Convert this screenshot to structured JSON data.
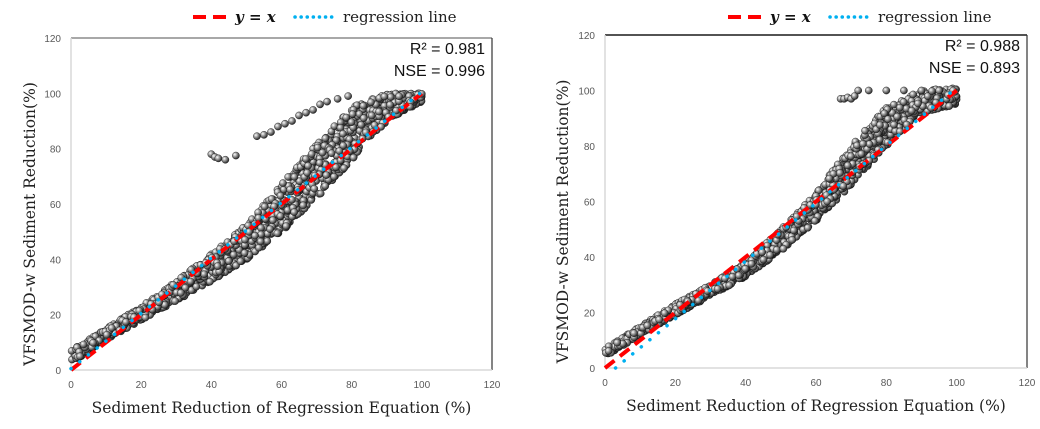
{
  "chart_data": [
    {
      "type": "scatter",
      "title": "",
      "xlabel": "Sediment Reduction of Regression Equation (%)",
      "ylabel": "VFSMOD-w Sediment Reduction(%)",
      "xlim": [
        0,
        120
      ],
      "ylim": [
        0,
        120
      ],
      "xticks": [
        "0",
        "20",
        "40",
        "60",
        "80",
        "100",
        "120"
      ],
      "yticks": [
        "0",
        "20",
        "40",
        "60",
        "80",
        "100",
        "120"
      ],
      "grid": false,
      "legend": {
        "placement": "top-right",
        "entries": [
          {
            "label": "y = x",
            "style": "dashed",
            "color": "#FF0000"
          },
          {
            "label": "regression line",
            "style": "dotted",
            "color": "#00B0F0"
          }
        ]
      },
      "annotations": [
        "R² = 0.981",
        "NSE = 0.996"
      ],
      "series": [
        {
          "name": "simulations",
          "marker_color": "#7f7f7f",
          "band": {
            "x": [
              0,
              5,
              10,
              20,
              30,
              40,
              50,
              60,
              70,
              80,
              90,
              100
            ],
            "y_low": [
              2,
              7,
              11,
              18,
              25,
              32,
              40,
              50,
              62,
              76,
              90,
              97
            ],
            "y_high": [
              7,
              11,
              15,
              23,
              32,
              42,
              53,
              67,
              82,
              95,
              100,
              100
            ]
          },
          "outliers": [
            {
              "x": 40,
              "y": 78
            },
            {
              "x": 41,
              "y": 77
            },
            {
              "x": 42,
              "y": 76.5
            },
            {
              "x": 44,
              "y": 76
            },
            {
              "x": 47,
              "y": 77.5
            },
            {
              "x": 53,
              "y": 84.5
            },
            {
              "x": 55,
              "y": 85
            },
            {
              "x": 57,
              "y": 86
            },
            {
              "x": 59,
              "y": 88
            },
            {
              "x": 61,
              "y": 89
            },
            {
              "x": 63,
              "y": 90
            },
            {
              "x": 65,
              "y": 92
            },
            {
              "x": 67,
              "y": 93
            },
            {
              "x": 69,
              "y": 94
            },
            {
              "x": 71,
              "y": 96
            },
            {
              "x": 73,
              "y": 97
            },
            {
              "x": 76,
              "y": 98
            },
            {
              "x": 79,
              "y": 99
            }
          ]
        },
        {
          "name": "y = x",
          "x": [
            0,
            100
          ],
          "y": [
            0,
            100
          ]
        },
        {
          "name": "regression line",
          "x": [
            0,
            100
          ],
          "y": [
            0.5,
            100.5
          ]
        }
      ]
    },
    {
      "type": "scatter",
      "title": "",
      "xlabel": "Sediment Reduction of Regression Equation (%)",
      "ylabel": "VFSMOD-w Sediment Reduction(%)",
      "xlim": [
        0,
        120
      ],
      "ylim": [
        0,
        120
      ],
      "xticks": [
        "0",
        "20",
        "40",
        "60",
        "80",
        "100",
        "120"
      ],
      "yticks": [
        "0",
        "20",
        "40",
        "60",
        "80",
        "100",
        "120"
      ],
      "grid": false,
      "legend": {
        "placement": "top-right",
        "entries": [
          {
            "label": "y = x",
            "style": "dashed",
            "color": "#FF0000"
          },
          {
            "label": "regression line",
            "style": "dotted",
            "color": "#00B0F0"
          }
        ]
      },
      "annotations": [
        "R² = 0.988",
        "NSE = 0.893"
      ],
      "series": [
        {
          "name": "simulations",
          "marker_color": "#7f7f7f",
          "band": {
            "x": [
              0,
              5,
              10,
              20,
              30,
              40,
              50,
              60,
              70,
              80,
              90,
              100
            ],
            "y_low": [
              4,
              8,
              12,
              19,
              26,
              33,
              42,
              53,
              66,
              80,
              92,
              95
            ],
            "y_high": [
              7,
              11,
              15,
              23,
              30,
              38,
              50,
              63,
              80,
              94,
              100,
              101
            ]
          },
          "outliers": [
            {
              "x": 67,
              "y": 97
            },
            {
              "x": 68,
              "y": 97
            },
            {
              "x": 69,
              "y": 97.5
            },
            {
              "x": 70,
              "y": 97
            },
            {
              "x": 71,
              "y": 98
            },
            {
              "x": 72,
              "y": 100
            },
            {
              "x": 75,
              "y": 100
            },
            {
              "x": 80,
              "y": 100
            },
            {
              "x": 85,
              "y": 100
            },
            {
              "x": 90,
              "y": 100
            },
            {
              "x": 95,
              "y": 100
            },
            {
              "x": 99,
              "y": 100
            }
          ]
        },
        {
          "name": "y = x",
          "x": [
            0,
            100
          ],
          "y": [
            0,
            100
          ]
        },
        {
          "name": "regression line",
          "x": [
            3,
            100
          ],
          "y": [
            0,
            101
          ]
        }
      ]
    }
  ]
}
